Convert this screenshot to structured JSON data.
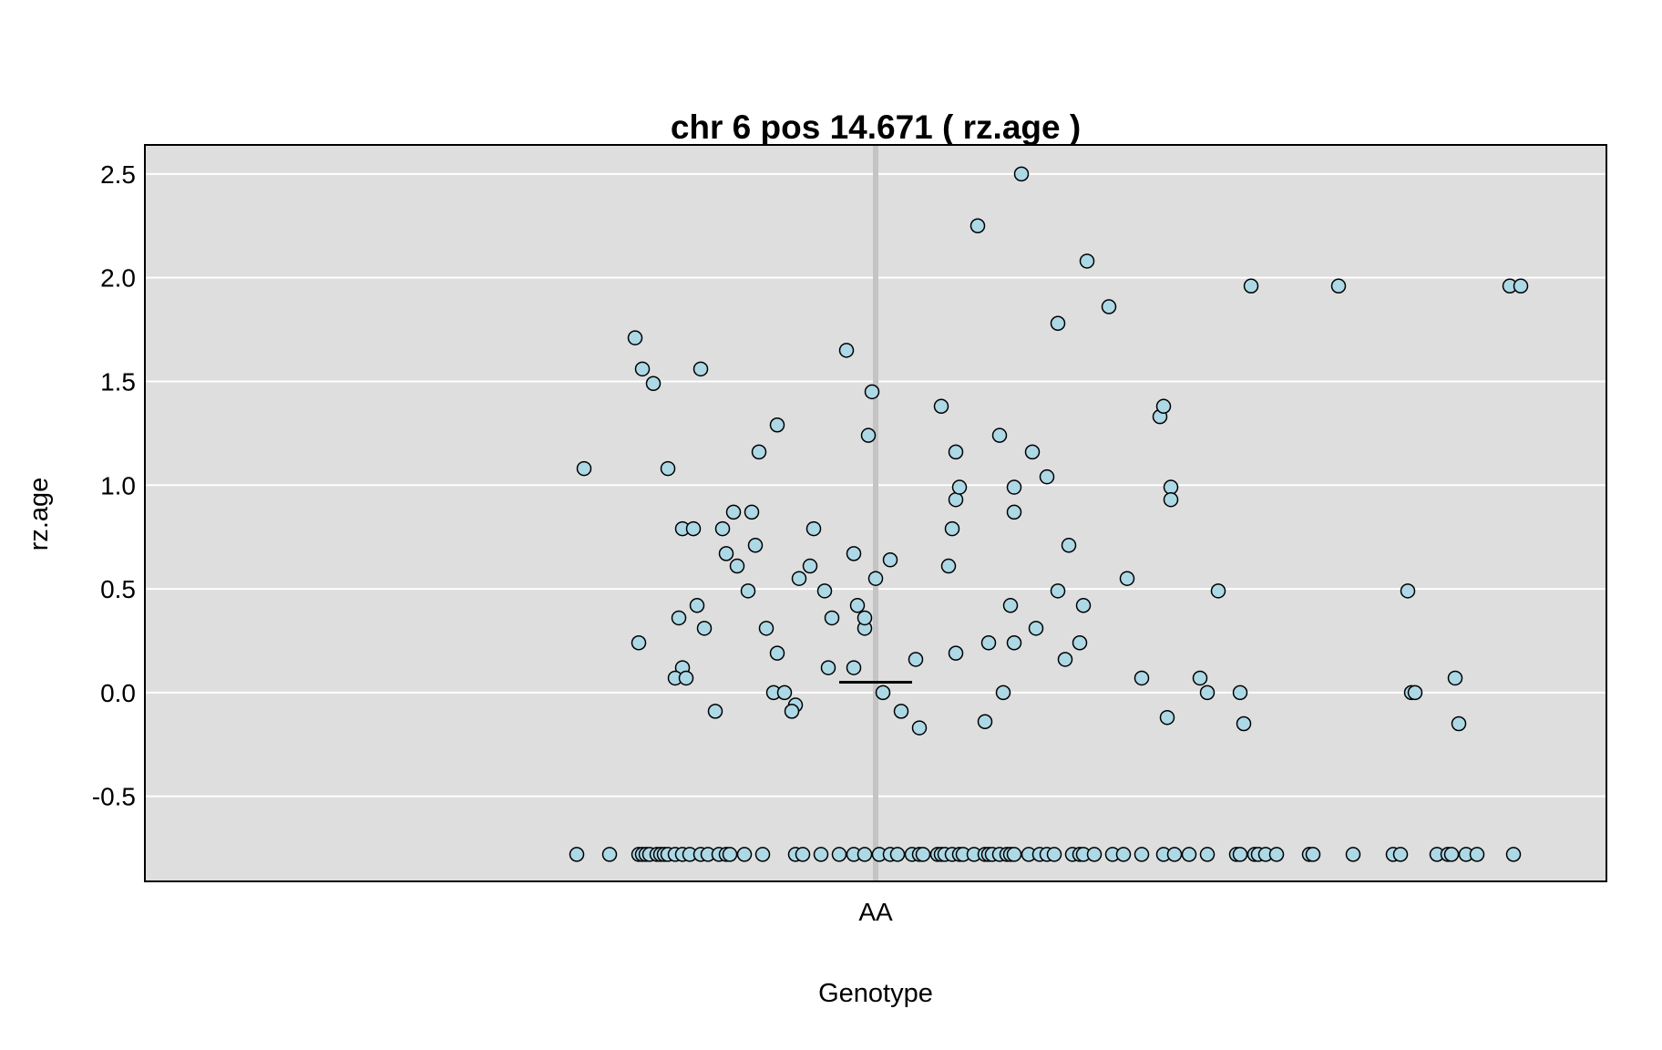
{
  "chart_data": {
    "type": "scatter",
    "title": "chr 6 pos 14.671 ( rz.age )",
    "xlabel": "Genotype",
    "ylabel": "rz.age",
    "categories": [
      "AA"
    ],
    "ylim": [
      -0.91,
      2.64
    ],
    "yticks": [
      "2.5",
      "2.0",
      "1.5",
      "1.0",
      "0.5",
      "0.0",
      "-0.5"
    ],
    "grid": true,
    "background": "#dedede",
    "point_fill": "#add8e6",
    "point_stroke": "#000000",
    "center_line_color": "#c4c4c4",
    "mean": 0.05,
    "series": [
      {
        "category": "AA",
        "jitter": [
          -0.82,
          -0.73,
          -0.65,
          -0.64,
          -0.63,
          -0.62,
          -0.6,
          -0.59,
          -0.58,
          -0.57,
          -0.55,
          -0.53,
          -0.51,
          -0.48,
          -0.46,
          -0.43,
          -0.41,
          -0.4,
          -0.36,
          -0.31,
          -0.22,
          -0.2,
          -0.15,
          -0.1,
          -0.06,
          -0.03,
          0.01,
          0.04,
          0.06,
          0.1,
          0.12,
          0.13,
          0.17,
          0.18,
          0.19,
          0.21,
          0.23,
          0.24,
          0.27,
          0.3,
          0.31,
          0.32,
          0.34,
          0.36,
          0.37,
          0.38,
          0.42,
          0.45,
          0.47,
          0.49,
          0.54,
          0.56,
          0.57,
          0.6,
          0.65,
          0.68,
          0.73,
          0.79,
          0.82,
          0.86,
          0.91,
          0.99,
          1.0,
          1.04,
          1.05,
          1.07,
          1.1,
          1.19,
          1.2,
          1.31,
          1.42,
          1.44,
          1.54,
          1.57,
          1.58,
          1.62,
          1.65,
          1.75
        ],
        "y": [
          -0.78,
          -0.78,
          -0.78,
          -0.78,
          -0.78,
          -0.78,
          -0.78,
          -0.78,
          -0.78,
          -0.78,
          -0.78,
          -0.78,
          -0.78,
          -0.78,
          -0.78,
          -0.78,
          -0.78,
          -0.78,
          -0.78,
          -0.78,
          -0.78,
          -0.78,
          -0.78,
          -0.78,
          -0.78,
          -0.78,
          -0.78,
          -0.78,
          -0.78,
          -0.78,
          -0.78,
          -0.78,
          -0.78,
          -0.78,
          -0.78,
          -0.78,
          -0.78,
          -0.78,
          -0.78,
          -0.78,
          -0.78,
          -0.78,
          -0.78,
          -0.78,
          -0.78,
          -0.78,
          -0.78,
          -0.78,
          -0.78,
          -0.78,
          -0.78,
          -0.78,
          -0.78,
          -0.78,
          -0.78,
          -0.78,
          -0.78,
          -0.78,
          -0.78,
          -0.78,
          -0.78,
          -0.78,
          -0.78,
          -0.78,
          -0.78,
          -0.78,
          -0.78,
          -0.78,
          -0.78,
          -0.78,
          -0.78,
          -0.78,
          -0.78,
          -0.78,
          -0.78,
          -0.78,
          -0.78,
          -0.78
        ]
      },
      {
        "category": "AA",
        "jitter": [
          -0.8,
          -0.65,
          -0.66,
          -0.64,
          -0.61,
          -0.57,
          -0.53,
          -0.54,
          -0.53,
          -0.55,
          -0.52,
          -0.5,
          -0.47,
          -0.49,
          -0.48,
          -0.44,
          -0.42,
          -0.41,
          -0.39,
          -0.38,
          -0.34,
          -0.35,
          -0.33,
          -0.32,
          -0.28,
          -0.3,
          -0.27,
          -0.27,
          -0.25,
          -0.22,
          -0.23,
          -0.21,
          -0.18,
          -0.17,
          -0.14,
          -0.12,
          -0.13,
          -0.08,
          -0.06,
          -0.06,
          -0.05,
          -0.03,
          -0.02,
          -0.03,
          -0.01,
          0.0,
          0.02,
          0.04,
          0.07,
          0.11,
          0.12,
          0.18,
          0.2,
          0.21,
          0.22,
          0.22,
          0.22,
          0.23,
          0.34,
          0.31,
          0.28,
          0.3,
          0.35,
          0.38,
          0.4,
          0.37,
          0.38,
          0.38,
          0.43,
          0.44,
          0.47,
          0.5,
          0.5,
          0.53,
          0.56,
          0.52,
          0.57,
          0.58,
          0.64,
          0.69,
          0.73,
          0.78,
          0.8,
          0.79,
          0.81,
          0.81,
          0.89,
          0.91,
          0.94,
          1.0,
          1.01,
          1.03,
          1.27,
          1.46,
          1.47,
          1.48,
          1.59,
          1.6,
          1.74,
          1.77
        ],
        "y": [
          1.08,
          0.24,
          1.71,
          1.56,
          1.49,
          1.08,
          0.79,
          0.36,
          0.12,
          0.07,
          0.07,
          0.79,
          0.31,
          0.42,
          1.56,
          -0.09,
          0.79,
          0.67,
          0.87,
          0.61,
          0.87,
          0.49,
          0.71,
          1.16,
          0.0,
          0.31,
          0.19,
          1.29,
          0.0,
          -0.06,
          -0.09,
          0.55,
          0.61,
          0.79,
          0.49,
          0.36,
          0.12,
          1.65,
          0.67,
          0.12,
          0.42,
          0.31,
          1.24,
          0.36,
          1.45,
          0.55,
          0.0,
          0.64,
          -0.09,
          0.16,
          -0.17,
          1.38,
          0.61,
          0.79,
          0.93,
          1.16,
          0.19,
          0.99,
          1.24,
          0.24,
          2.25,
          -0.14,
          0.0,
          0.24,
          2.5,
          0.42,
          0.99,
          0.87,
          1.16,
          0.31,
          1.04,
          1.78,
          0.49,
          0.71,
          0.24,
          0.16,
          0.42,
          2.08,
          1.86,
          0.55,
          0.07,
          1.33,
          -0.12,
          1.38,
          0.99,
          0.93,
          0.07,
          0.0,
          0.49,
          0.0,
          -0.15,
          1.96,
          1.96,
          0.49,
          0.0,
          0.0,
          0.07,
          -0.15,
          1.96,
          1.96
        ]
      }
    ]
  }
}
